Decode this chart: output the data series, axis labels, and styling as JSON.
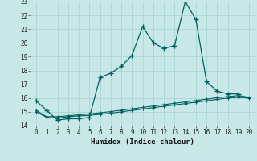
{
  "xlabel": "Humidex (Indice chaleur)",
  "x_values": [
    0,
    1,
    2,
    3,
    4,
    5,
    6,
    7,
    8,
    9,
    10,
    11,
    12,
    13,
    14,
    15,
    16,
    17,
    18,
    19,
    20
  ],
  "line1_y": [
    15.8,
    15.1,
    14.4,
    14.5,
    14.5,
    14.6,
    17.5,
    17.8,
    18.3,
    19.1,
    21.2,
    20.0,
    19.6,
    19.8,
    23.0,
    21.7,
    17.2,
    16.5,
    16.3,
    16.3,
    null
  ],
  "line2_y": [
    15.0,
    14.6,
    14.55,
    14.65,
    14.7,
    14.75,
    14.82,
    14.9,
    15.0,
    15.1,
    15.2,
    15.3,
    15.4,
    15.5,
    15.6,
    15.7,
    15.8,
    15.9,
    16.0,
    16.05,
    16.0
  ],
  "line3_y": [
    15.1,
    14.65,
    14.65,
    14.72,
    14.78,
    14.85,
    14.93,
    15.02,
    15.12,
    15.22,
    15.32,
    15.42,
    15.52,
    15.62,
    15.72,
    15.82,
    15.92,
    16.02,
    16.1,
    16.18,
    16.05
  ],
  "line_color": "#006060",
  "bg_color": "#c8e8e8",
  "grid_color": "#a8d0d0",
  "ylim": [
    14,
    23
  ],
  "xlim": [
    -0.5,
    20.5
  ],
  "yticks": [
    14,
    15,
    16,
    17,
    18,
    19,
    20,
    21,
    22,
    23
  ],
  "xticks": [
    0,
    1,
    2,
    3,
    4,
    5,
    6,
    7,
    8,
    9,
    10,
    11,
    12,
    13,
    14,
    15,
    16,
    17,
    18,
    19,
    20
  ]
}
